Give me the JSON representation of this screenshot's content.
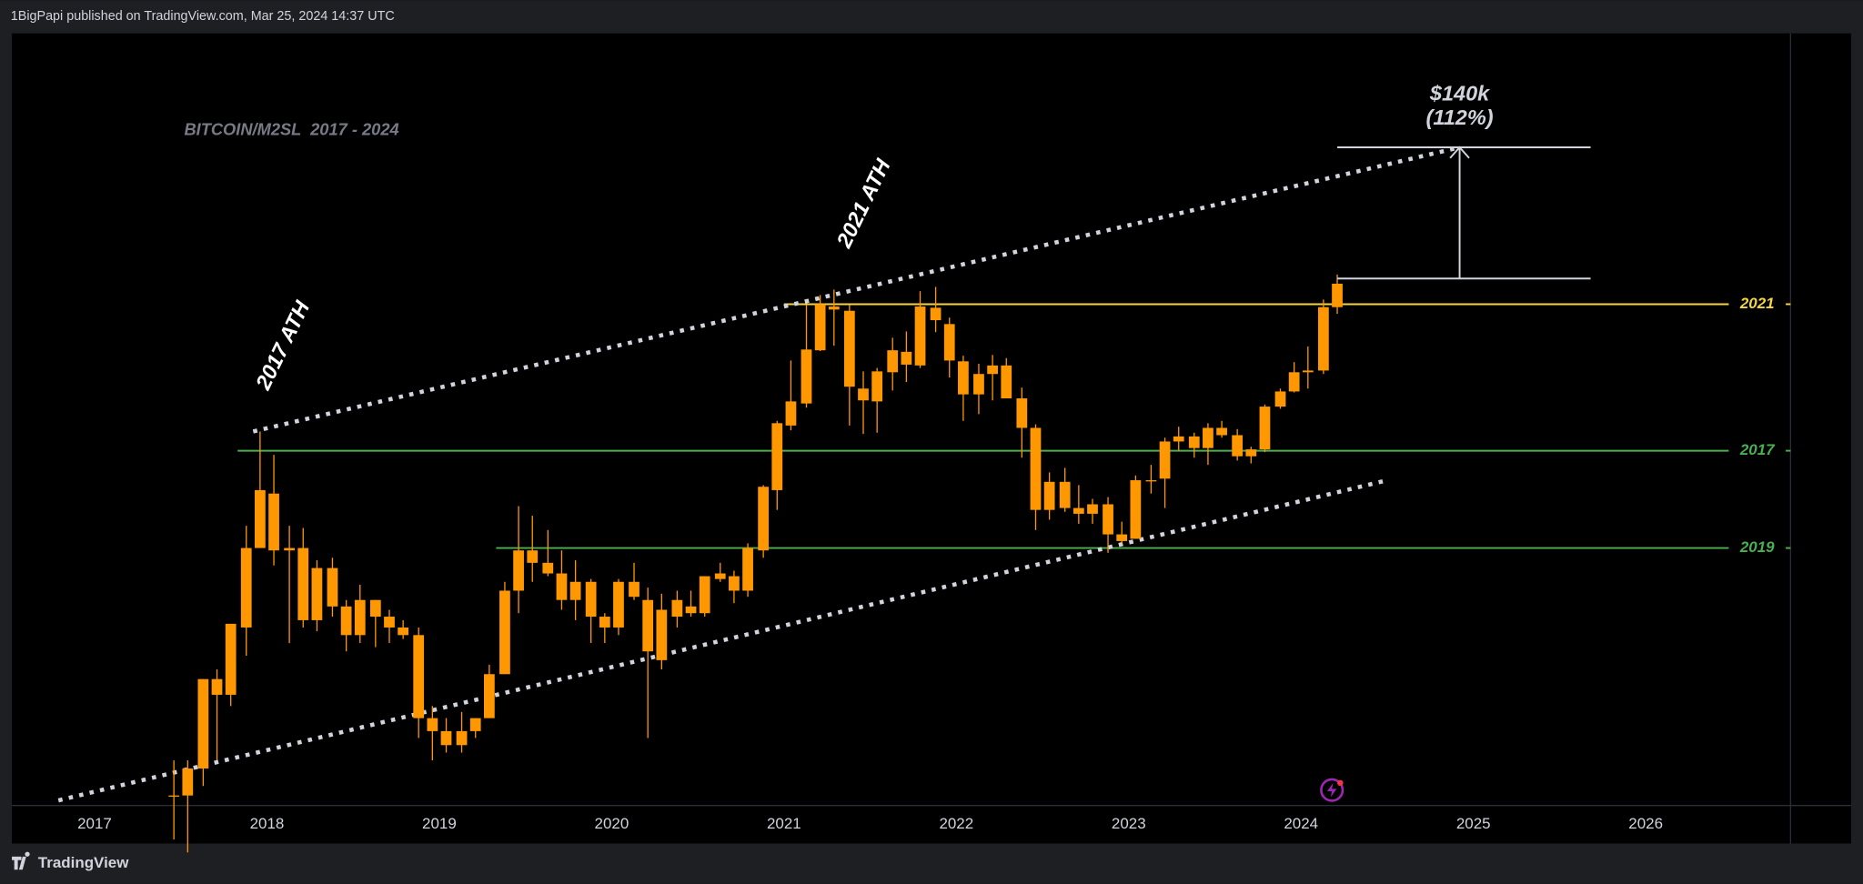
{
  "header": {
    "text": "1BigPapi published on TradingView.com, Mar 25, 2024 14:37 UTC"
  },
  "footer": {
    "brand": "TradingView"
  },
  "chart_data": {
    "type": "candlestick",
    "title": "BITCOIN/M2SL  2017 - 2024",
    "color": "#ff9800",
    "log_scale": true,
    "grid": false,
    "xlim": [
      2016.52,
      2026.84
    ],
    "xticks": [
      2017,
      2018,
      2019,
      2020,
      2021,
      2022,
      2023,
      2024,
      2025,
      2026
    ],
    "ylim": [
      0.17,
      14
    ],
    "x": [
      2017.46,
      2017.54,
      2017.63,
      2017.71,
      2017.79,
      2017.88,
      2017.96,
      2018.04,
      2018.13,
      2018.21,
      2018.29,
      2018.38,
      2018.46,
      2018.54,
      2018.63,
      2018.71,
      2018.79,
      2018.88,
      2018.96,
      2019.04,
      2019.13,
      2019.21,
      2019.29,
      2019.38,
      2019.46,
      2019.54,
      2019.63,
      2019.71,
      2019.79,
      2019.88,
      2019.96,
      2020.04,
      2020.13,
      2020.21,
      2020.29,
      2020.38,
      2020.46,
      2020.54,
      2020.63,
      2020.71,
      2020.79,
      2020.88,
      2020.96,
      2021.04,
      2021.13,
      2021.21,
      2021.29,
      2021.38,
      2021.46,
      2021.54,
      2021.63,
      2021.71,
      2021.79,
      2021.88,
      2021.96,
      2022.04,
      2022.13,
      2022.21,
      2022.29,
      2022.38,
      2022.46,
      2022.54,
      2022.63,
      2022.71,
      2022.79,
      2022.88,
      2022.96,
      2023.04,
      2023.13,
      2023.21,
      2023.29,
      2023.38,
      2023.46,
      2023.54,
      2023.63,
      2023.71,
      2023.79,
      2023.88,
      2023.96,
      2024.04,
      2024.13,
      2024.21
    ],
    "open": [
      0.18,
      0.18,
      0.21,
      0.35,
      0.32,
      0.47,
      0.74,
      1.01,
      0.73,
      0.74,
      0.49,
      0.66,
      0.53,
      0.45,
      0.55,
      0.5,
      0.47,
      0.45,
      0.28,
      0.26,
      0.24,
      0.26,
      0.28,
      0.36,
      0.58,
      0.73,
      0.68,
      0.64,
      0.55,
      0.61,
      0.5,
      0.47,
      0.61,
      0.55,
      0.39,
      0.5,
      0.53,
      0.51,
      0.62,
      0.63,
      0.58,
      0.73,
      1.03,
      1.49,
      1.69,
      2.29,
      2.94,
      2.87,
      1.84,
      1.71,
      2.02,
      2.27,
      2.1,
      2.92,
      2.66,
      2.15,
      1.78,
      2,
      2.1,
      1.74,
      1.47,
      0.92,
      1.08,
      0.93,
      0.9,
      0.95,
      0.8,
      0.78,
      1.09,
      1.1,
      1.36,
      1.4,
      1.31,
      1.47,
      1.41,
      1.25,
      1.3,
      1.66,
      1.81,
      2.02,
      2.04,
      2.93
    ],
    "high": [
      0.22,
      0.22,
      0.35,
      0.37,
      0.48,
      0.84,
      1.44,
      1.26,
      0.84,
      0.83,
      0.69,
      0.7,
      0.55,
      0.6,
      0.55,
      0.52,
      0.49,
      0.47,
      0.3,
      0.28,
      0.29,
      0.28,
      0.38,
      0.61,
      0.94,
      0.89,
      0.82,
      0.73,
      0.69,
      0.62,
      0.51,
      0.62,
      0.68,
      0.59,
      0.57,
      0.58,
      0.58,
      0.63,
      0.68,
      0.65,
      0.76,
      1.06,
      1.53,
      2.16,
      2.97,
      3.14,
      3.24,
      2.97,
      2.03,
      2.07,
      2.46,
      2.55,
      3.21,
      3.29,
      2.76,
      2.22,
      2.12,
      2.23,
      2.19,
      1.85,
      1.5,
      1.14,
      1.17,
      1.06,
      0.98,
      0.99,
      0.86,
      1.12,
      1.19,
      1.39,
      1.48,
      1.43,
      1.51,
      1.53,
      1.46,
      1.32,
      1.68,
      1.84,
      2.14,
      2.34,
      3.06,
      3.53
    ],
    "low": [
      0.14,
      0.13,
      0.19,
      0.22,
      0.3,
      0.4,
      0.79,
      0.67,
      0.43,
      0.47,
      0.46,
      0.5,
      0.41,
      0.43,
      0.42,
      0.43,
      0.44,
      0.25,
      0.22,
      0.23,
      0.23,
      0.25,
      0.28,
      0.36,
      0.51,
      0.61,
      0.63,
      0.52,
      0.49,
      0.43,
      0.43,
      0.45,
      0.55,
      0.25,
      0.37,
      0.47,
      0.5,
      0.5,
      0.61,
      0.54,
      0.56,
      0.7,
      0.92,
      1.45,
      1.65,
      2.28,
      2.35,
      1.49,
      1.42,
      1.43,
      1.82,
      1.91,
      2.07,
      2.54,
      1.96,
      1.53,
      1.59,
      1.72,
      1.74,
      1.24,
      0.82,
      0.87,
      0.91,
      0.85,
      0.85,
      0.72,
      0.76,
      0.78,
      1.01,
      0.93,
      1.29,
      1.24,
      1.19,
      1.39,
      1.22,
      1.2,
      1.28,
      1.64,
      1.8,
      1.84,
      2,
      2.82
    ],
    "close": [
      0.18,
      0.21,
      0.35,
      0.32,
      0.48,
      0.74,
      1.03,
      0.73,
      0.74,
      0.49,
      0.66,
      0.53,
      0.45,
      0.55,
      0.5,
      0.47,
      0.45,
      0.28,
      0.26,
      0.24,
      0.26,
      0.28,
      0.36,
      0.58,
      0.73,
      0.68,
      0.64,
      0.55,
      0.61,
      0.5,
      0.47,
      0.61,
      0.56,
      0.41,
      0.52,
      0.55,
      0.51,
      0.63,
      0.64,
      0.58,
      0.74,
      1.05,
      1.51,
      1.71,
      2.3,
      2.98,
      2.89,
      1.86,
      1.72,
      2.03,
      2.29,
      2.11,
      2.94,
      2.72,
      2.16,
      1.78,
      2,
      2.1,
      1.74,
      1.47,
      0.92,
      1.08,
      0.93,
      0.9,
      0.95,
      0.8,
      0.77,
      1.09,
      1.09,
      1.36,
      1.4,
      1.31,
      1.47,
      1.41,
      1.25,
      1.3,
      1.66,
      1.81,
      2.02,
      2.04,
      2.93,
      3.35
    ],
    "levels": [
      {
        "label": "2021",
        "value": 2.98,
        "from": 2021.0,
        "color": "#f5d547"
      },
      {
        "label": "2017",
        "value": 1.29,
        "from": 2017.83,
        "color": "#4caf50"
      },
      {
        "label": "2019",
        "value": 0.74,
        "from": 2019.33,
        "color": "#4caf50"
      }
    ],
    "trendlines": [
      {
        "points": [
          [
            2017.92,
            1.44
          ],
          [
            2024.92,
            7.3
          ]
        ],
        "color": "#d1d4dc"
      },
      {
        "points": [
          [
            2016.79,
            0.175
          ],
          [
            2024.5,
            1.09
          ]
        ],
        "color": "#d1d4dc"
      }
    ],
    "annotations": [
      {
        "text": "2017 ATH",
        "x": 2017.92,
        "y": 1.44
      },
      {
        "text": "2021 ATH",
        "x": 2021.29,
        "y": 3.24
      }
    ],
    "projection": {
      "from": 3.45,
      "to": 7.3,
      "x": [
        2024.21,
        2025.68
      ],
      "arrow_x": 2024.92,
      "label": "$140k",
      "sublabel": "(112%)",
      "color": "#d1d4dc"
    }
  }
}
